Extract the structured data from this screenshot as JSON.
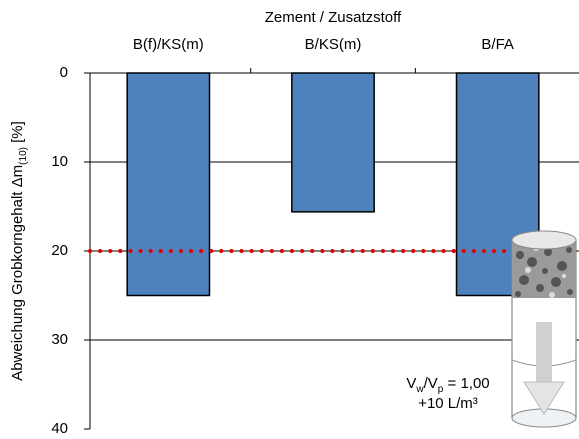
{
  "chart_data": {
    "type": "bar",
    "x_label": "Zement / Zusatzstoff",
    "y_label_parts": [
      "Abweichung Grobkorngehalt Δm",
      "(10)",
      " [%]"
    ],
    "categories": [
      "B(f)/KS(m)",
      "B/KS(m)",
      "B/FA"
    ],
    "values": [
      25,
      15.6,
      25
    ],
    "color": "#4f81bd",
    "ylim": [
      0,
      40
    ],
    "yticks": [
      0,
      10,
      20,
      30,
      40
    ],
    "y_inverted": true,
    "grid": true,
    "reference_line": {
      "value": 20,
      "color": "#e00000"
    },
    "annotation_lines": [
      [
        "V",
        "w",
        "/V",
        "p",
        " = 1,00"
      ],
      [
        "+10 L/m³"
      ]
    ]
  }
}
